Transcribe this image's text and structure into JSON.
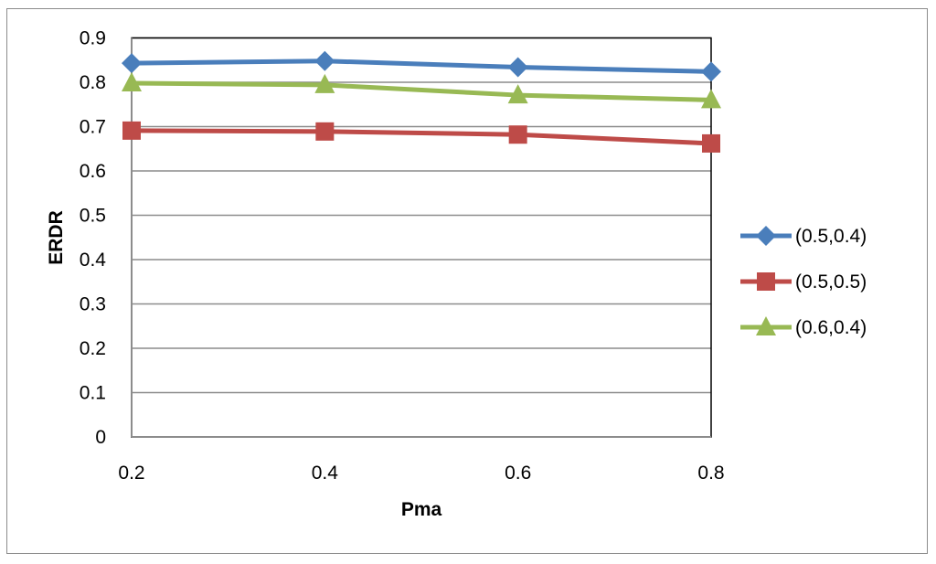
{
  "chart_data": {
    "type": "line",
    "xlabel": "Pma",
    "ylabel": "ERDR",
    "x": [
      0.2,
      0.4,
      0.6,
      0.8
    ],
    "x_tick_labels": [
      "0.2",
      "0.4",
      "0.6",
      "0.8"
    ],
    "y_tick_labels": [
      "0",
      "0.1",
      "0.2",
      "0.3",
      "0.4",
      "0.5",
      "0.6",
      "0.7",
      "0.8",
      "0.9"
    ],
    "ylim": [
      0,
      0.9
    ],
    "grid": "horizontal",
    "legend_position": "right",
    "series": [
      {
        "name": "(0.5,0.4)",
        "values": [
          0.843,
          0.848,
          0.834,
          0.824
        ],
        "color": "#4a7ebb",
        "marker": "diamond"
      },
      {
        "name": "(0.5,0.5)",
        "values": [
          0.691,
          0.689,
          0.682,
          0.662
        ],
        "color": "#be4b48",
        "marker": "square"
      },
      {
        "name": "(0.6,0.4)",
        "values": [
          0.798,
          0.794,
          0.771,
          0.76
        ],
        "color": "#98b954",
        "marker": "triangle"
      }
    ]
  }
}
